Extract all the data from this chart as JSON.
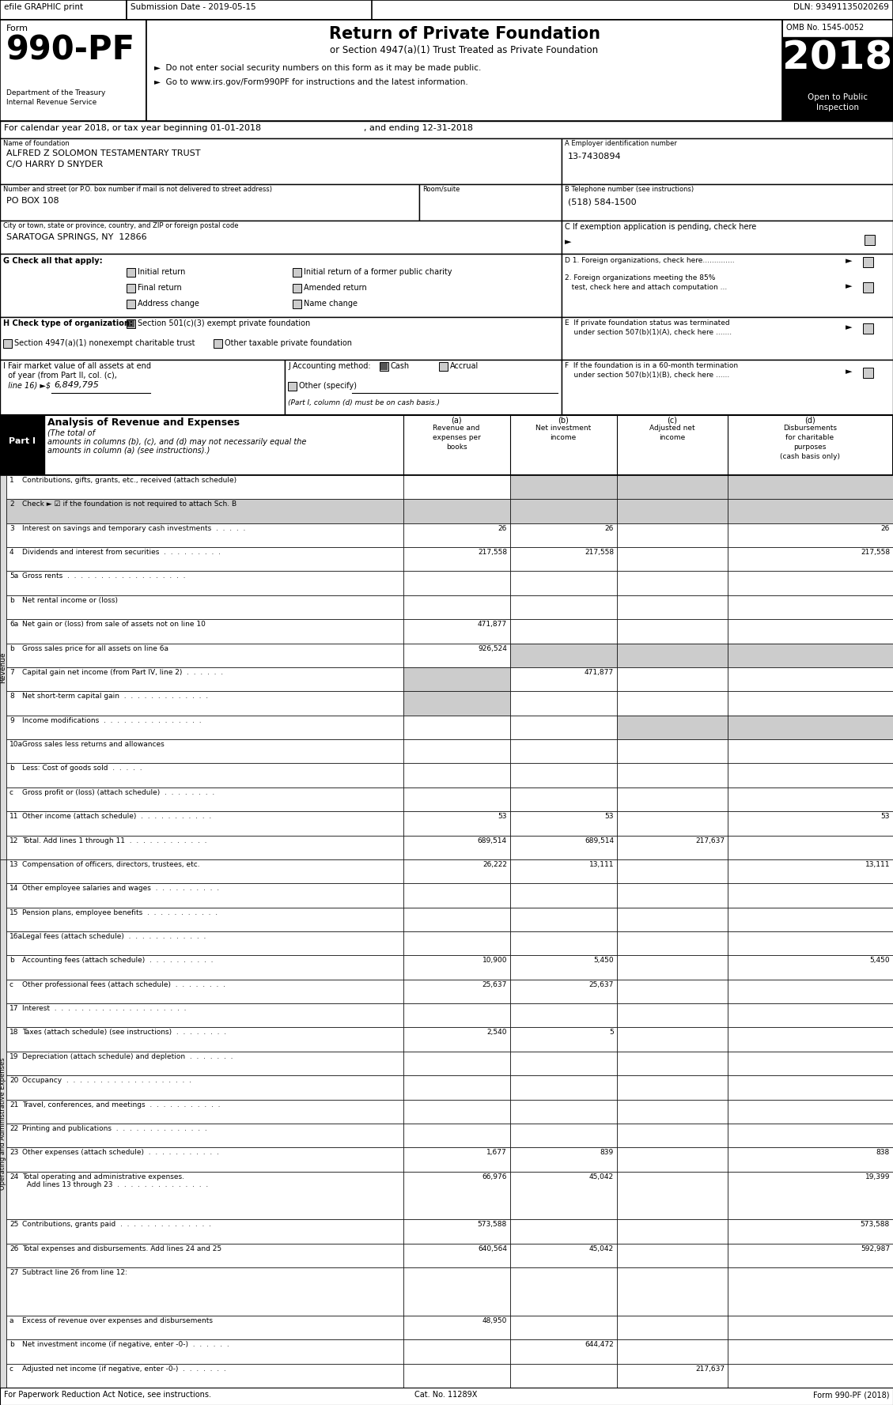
{
  "title_top_left": "efile GRAPHIC print",
  "submission_date": "Submission Date - 2019-05-15",
  "dln": "DLN: 93491135020269",
  "omb": "OMB No. 1545-0052",
  "form_number": "990-PF",
  "year": "2018",
  "return_title": "Return of Private Foundation",
  "return_subtitle": "or Section 4947(a)(1) Trust Treated as Private Foundation",
  "bullet1": "►  Do not enter social security numbers on this form as it may be made public.",
  "bullet2": "►  Go to www.irs.gov/Form990PF for instructions and the latest information.",
  "calendar_year": "For calendar year 2018, or tax year beginning 01-01-2018",
  "and_ending": ", and ending 12-31-2018",
  "name_label": "Name of foundation",
  "name_line1": "ALFRED Z SOLOMON TESTAMENTARY TRUST",
  "name_line2": "C/O HARRY D SNYDER",
  "ein_label": "A Employer identification number",
  "ein": "13-7430894",
  "address_label": "Number and street (or P.O. box number if mail is not delivered to street address)",
  "address": "PO BOX 108",
  "room_label": "Room/suite",
  "phone_label": "B Telephone number (see instructions)",
  "phone": "(518) 584-1500",
  "city_label": "City or town, state or province, country, and ZIP or foreign postal code",
  "city": "SARATOGA SPRINGS, NY  12866",
  "exempt_label": "C If exemption application is pending, check here",
  "g_label": "G Check all that apply:",
  "initial_return": "Initial return",
  "initial_former": "Initial return of a former public charity",
  "final_return": "Final return",
  "amended_return": "Amended return",
  "address_change": "Address change",
  "name_change": "Name change",
  "d1_label": "D 1. Foreign organizations, check here..............",
  "h_label": "H Check type of organization:",
  "h_501c3": "Section 501(c)(3) exempt private foundation",
  "h_4947": "Section 4947(a)(1) nonexempt charitable trust",
  "h_other": "Other taxable private foundation",
  "rows": [
    {
      "num": "1",
      "label": "Contributions, gifts, grants, etc., received (attach schedule)",
      "dots": false,
      "a": "",
      "b": "",
      "c": "",
      "d": "",
      "shaded_bcd": true,
      "shaded_a": false,
      "shaded_all": false,
      "shaded_cd": false
    },
    {
      "num": "2",
      "label": "Check ► ☑ if the foundation is not required to attach Sch. B",
      "dots": false,
      "a": "",
      "b": "",
      "c": "",
      "d": "",
      "shaded_bcd": false,
      "shaded_a": false,
      "shaded_all": true,
      "shaded_cd": false
    },
    {
      "num": "3",
      "label": "Interest on savings and temporary cash investments  .  .  .  .  .",
      "dots": false,
      "a": "26",
      "b": "26",
      "c": "",
      "d": "26",
      "shaded_bcd": false,
      "shaded_a": false,
      "shaded_all": false,
      "shaded_cd": false
    },
    {
      "num": "4",
      "label": "Dividends and interest from securities  .  .  .  .  .  .  .  .  .",
      "dots": false,
      "a": "217,558",
      "b": "217,558",
      "c": "",
      "d": "217,558",
      "shaded_bcd": false,
      "shaded_a": false,
      "shaded_all": false,
      "shaded_cd": false
    },
    {
      "num": "5a",
      "label": "Gross rents  .  .  .  .  .  .  .  .  .  .  .  .  .  .  .  .  .  .",
      "dots": false,
      "a": "",
      "b": "",
      "c": "",
      "d": "",
      "shaded_bcd": false,
      "shaded_a": false,
      "shaded_all": false,
      "shaded_cd": false
    },
    {
      "num": "b",
      "label": "Net rental income or (loss)",
      "dots": false,
      "a": "",
      "b": "",
      "c": "",
      "d": "",
      "shaded_bcd": false,
      "shaded_a": false,
      "shaded_all": false,
      "shaded_cd": false
    },
    {
      "num": "6a",
      "label": "Net gain or (loss) from sale of assets not on line 10",
      "dots": false,
      "a": "471,877",
      "b": "",
      "c": "",
      "d": "",
      "shaded_bcd": false,
      "shaded_a": false,
      "shaded_all": false,
      "shaded_cd": false
    },
    {
      "num": "b",
      "label": "Gross sales price for all assets on line 6a",
      "dots": false,
      "a": "926,524",
      "b": "",
      "c": "",
      "d": "",
      "shaded_bcd": true,
      "shaded_a": false,
      "shaded_all": false,
      "shaded_cd": false
    },
    {
      "num": "7",
      "label": "Capital gain net income (from Part IV, line 2)  .  .  .  .  .  .",
      "dots": false,
      "a": "",
      "b": "471,877",
      "c": "",
      "d": "",
      "shaded_bcd": false,
      "shaded_a": true,
      "shaded_all": false,
      "shaded_cd": false
    },
    {
      "num": "8",
      "label": "Net short-term capital gain  .  .  .  .  .  .  .  .  .  .  .  .  .",
      "dots": false,
      "a": "",
      "b": "",
      "c": "",
      "d": "",
      "shaded_bcd": false,
      "shaded_a": true,
      "shaded_all": false,
      "shaded_cd": false
    },
    {
      "num": "9",
      "label": "Income modifications  .  .  .  .  .  .  .  .  .  .  .  .  .  .  .",
      "dots": false,
      "a": "",
      "b": "",
      "c": "",
      "d": "",
      "shaded_bcd": false,
      "shaded_a": false,
      "shaded_all": false,
      "shaded_cd": true
    },
    {
      "num": "10a",
      "label": "Gross sales less returns and allowances",
      "dots": false,
      "a": "",
      "b": "",
      "c": "",
      "d": "",
      "shaded_bcd": false,
      "shaded_a": false,
      "shaded_all": false,
      "shaded_cd": false
    },
    {
      "num": "b",
      "label": "Less: Cost of goods sold  .  .  .  .  .",
      "dots": false,
      "a": "",
      "b": "",
      "c": "",
      "d": "",
      "shaded_bcd": false,
      "shaded_a": false,
      "shaded_all": false,
      "shaded_cd": false
    },
    {
      "num": "c",
      "label": "Gross profit or (loss) (attach schedule)  .  .  .  .  .  .  .  .",
      "dots": false,
      "a": "",
      "b": "",
      "c": "",
      "d": "",
      "shaded_bcd": false,
      "shaded_a": false,
      "shaded_all": false,
      "shaded_cd": false
    },
    {
      "num": "11",
      "label": "Other income (attach schedule)  .  .  .  .  .  .  .  .  .  .  .",
      "dots": false,
      "a": "53",
      "b": "53",
      "c": "",
      "d": "53",
      "shaded_bcd": false,
      "shaded_a": false,
      "shaded_all": false,
      "shaded_cd": false
    },
    {
      "num": "12",
      "label": "Total. Add lines 1 through 11  .  .  .  .  .  .  .  .  .  .  .  .",
      "dots": false,
      "a": "689,514",
      "b": "689,514",
      "c": "217,637",
      "d": "",
      "shaded_bcd": false,
      "shaded_a": false,
      "shaded_all": false,
      "shaded_cd": false
    },
    {
      "num": "13",
      "label": "Compensation of officers, directors, trustees, etc.",
      "dots": false,
      "a": "26,222",
      "b": "13,111",
      "c": "",
      "d": "13,111",
      "shaded_bcd": false,
      "shaded_a": false,
      "shaded_all": false,
      "shaded_cd": false
    },
    {
      "num": "14",
      "label": "Other employee salaries and wages  .  .  .  .  .  .  .  .  .  .",
      "dots": false,
      "a": "",
      "b": "",
      "c": "",
      "d": "",
      "shaded_bcd": false,
      "shaded_a": false,
      "shaded_all": false,
      "shaded_cd": false
    },
    {
      "num": "15",
      "label": "Pension plans, employee benefits  .  .  .  .  .  .  .  .  .  .  .",
      "dots": false,
      "a": "",
      "b": "",
      "c": "",
      "d": "",
      "shaded_bcd": false,
      "shaded_a": false,
      "shaded_all": false,
      "shaded_cd": false
    },
    {
      "num": "16a",
      "label": "Legal fees (attach schedule)  .  .  .  .  .  .  .  .  .  .  .  .",
      "dots": false,
      "a": "",
      "b": "",
      "c": "",
      "d": "",
      "shaded_bcd": false,
      "shaded_a": false,
      "shaded_all": false,
      "shaded_cd": false
    },
    {
      "num": "b",
      "label": "Accounting fees (attach schedule)  .  .  .  .  .  .  .  .  .  .",
      "dots": false,
      "a": "10,900",
      "b": "5,450",
      "c": "",
      "d": "5,450",
      "shaded_bcd": false,
      "shaded_a": false,
      "shaded_all": false,
      "shaded_cd": false
    },
    {
      "num": "c",
      "label": "Other professional fees (attach schedule)  .  .  .  .  .  .  .  .",
      "dots": false,
      "a": "25,637",
      "b": "25,637",
      "c": "",
      "d": "",
      "shaded_bcd": false,
      "shaded_a": false,
      "shaded_all": false,
      "shaded_cd": false
    },
    {
      "num": "17",
      "label": "Interest  .  .  .  .  .  .  .  .  .  .  .  .  .  .  .  .  .  .  .  .",
      "dots": false,
      "a": "",
      "b": "",
      "c": "",
      "d": "",
      "shaded_bcd": false,
      "shaded_a": false,
      "shaded_all": false,
      "shaded_cd": false
    },
    {
      "num": "18",
      "label": "Taxes (attach schedule) (see instructions)  .  .  .  .  .  .  .  .",
      "dots": false,
      "a": "2,540",
      "b": "5",
      "c": "",
      "d": "",
      "shaded_bcd": false,
      "shaded_a": false,
      "shaded_all": false,
      "shaded_cd": false
    },
    {
      "num": "19",
      "label": "Depreciation (attach schedule) and depletion  .  .  .  .  .  .  .",
      "dots": false,
      "a": "",
      "b": "",
      "c": "",
      "d": "",
      "shaded_bcd": false,
      "shaded_a": false,
      "shaded_all": false,
      "shaded_cd": false
    },
    {
      "num": "20",
      "label": "Occupancy  .  .  .  .  .  .  .  .  .  .  .  .  .  .  .  .  .  .  .",
      "dots": false,
      "a": "",
      "b": "",
      "c": "",
      "d": "",
      "shaded_bcd": false,
      "shaded_a": false,
      "shaded_all": false,
      "shaded_cd": false
    },
    {
      "num": "21",
      "label": "Travel, conferences, and meetings  .  .  .  .  .  .  .  .  .  .  .",
      "dots": false,
      "a": "",
      "b": "",
      "c": "",
      "d": "",
      "shaded_bcd": false,
      "shaded_a": false,
      "shaded_all": false,
      "shaded_cd": false
    },
    {
      "num": "22",
      "label": "Printing and publications  .  .  .  .  .  .  .  .  .  .  .  .  .  .",
      "dots": false,
      "a": "",
      "b": "",
      "c": "",
      "d": "",
      "shaded_bcd": false,
      "shaded_a": false,
      "shaded_all": false,
      "shaded_cd": false
    },
    {
      "num": "23",
      "label": "Other expenses (attach schedule)  .  .  .  .  .  .  .  .  .  .  .",
      "dots": false,
      "a": "1,677",
      "b": "839",
      "c": "",
      "d": "838",
      "shaded_bcd": false,
      "shaded_a": false,
      "shaded_all": false,
      "shaded_cd": false
    },
    {
      "num": "24",
      "label": "Total operating and administrative expenses.",
      "label2": "  Add lines 13 through 23  .  .  .  .  .  .  .  .  .  .  .  .  .  .",
      "dots": false,
      "a": "66,976",
      "b": "45,042",
      "c": "",
      "d": "19,399",
      "shaded_bcd": false,
      "shaded_a": false,
      "shaded_all": false,
      "shaded_cd": false,
      "double_line": true
    },
    {
      "num": "25",
      "label": "Contributions, grants paid  .  .  .  .  .  .  .  .  .  .  .  .  .  .",
      "dots": false,
      "a": "573,588",
      "b": "",
      "c": "",
      "d": "573,588",
      "shaded_bcd": false,
      "shaded_a": false,
      "shaded_all": false,
      "shaded_cd": false
    },
    {
      "num": "26",
      "label": "Total expenses and disbursements. Add lines 24 and 25",
      "dots": false,
      "a": "640,564",
      "b": "45,042",
      "c": "",
      "d": "592,987",
      "shaded_bcd": false,
      "shaded_a": false,
      "shaded_all": false,
      "shaded_cd": false
    },
    {
      "num": "27",
      "label": "Subtract line 26 from line 12:",
      "dots": false,
      "a": "",
      "b": "",
      "c": "",
      "d": "",
      "shaded_bcd": false,
      "shaded_a": false,
      "shaded_all": false,
      "shaded_cd": false,
      "double_line": true
    },
    {
      "num": "a",
      "label": "Excess of revenue over expenses and disbursements",
      "dots": false,
      "a": "48,950",
      "b": "",
      "c": "",
      "d": "",
      "shaded_bcd": false,
      "shaded_a": false,
      "shaded_all": false,
      "shaded_cd": false
    },
    {
      "num": "b",
      "label": "Net investment income (if negative, enter -0-)  .  .  .  .  .  .",
      "dots": false,
      "a": "",
      "b": "644,472",
      "c": "",
      "d": "",
      "shaded_bcd": false,
      "shaded_a": false,
      "shaded_all": false,
      "shaded_cd": false
    },
    {
      "num": "c",
      "label": "Adjusted net income (if negative, enter -0-)  .  .  .  .  .  .  .",
      "dots": false,
      "a": "",
      "b": "",
      "c": "217,637",
      "d": "",
      "shaded_bcd": false,
      "shaded_a": false,
      "shaded_all": false,
      "shaded_cd": false
    }
  ],
  "shaded_color": "#CCCCCC",
  "footer_left": "For Paperwork Reduction Act Notice, see instructions.",
  "footer_cat": "Cat. No. 11289X",
  "footer_form": "Form 990-PF (2018)"
}
